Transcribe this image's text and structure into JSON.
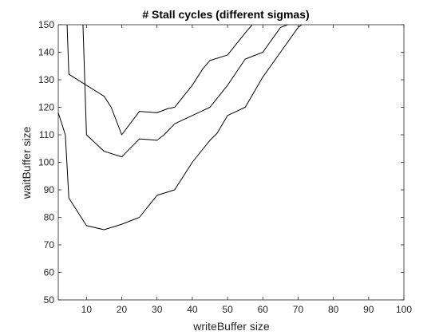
{
  "chart_data": {
    "type": "line",
    "title": "# Stall cycles (different sigmas)",
    "xlabel": "writeBuffer size",
    "ylabel": "waitBuffer size",
    "xlim": [
      2,
      100
    ],
    "ylim": [
      50,
      150
    ],
    "xticks": [
      10,
      20,
      30,
      40,
      50,
      60,
      70,
      80,
      90,
      100
    ],
    "yticks": [
      50,
      60,
      70,
      80,
      90,
      100,
      110,
      120,
      130,
      140,
      150
    ],
    "grid": false,
    "legend": "none",
    "line_color": "#000000",
    "series": [
      {
        "x": [
          4.5,
          5,
          10,
          15,
          17,
          20,
          25,
          30,
          33,
          35,
          40,
          43,
          45,
          50,
          55,
          57
        ],
        "y": [
          150,
          132,
          128,
          124,
          120,
          110,
          118.5,
          118,
          119.5,
          120,
          128,
          134,
          137,
          139,
          147,
          150
        ]
      },
      {
        "x": [
          9,
          10,
          15,
          20,
          25,
          30,
          32,
          35,
          40,
          45,
          50,
          55,
          60,
          65,
          67
        ],
        "y": [
          150,
          110,
          104,
          102,
          108.5,
          108,
          110,
          114,
          117,
          120,
          128,
          137.5,
          140,
          149,
          150
        ]
      },
      {
        "x": [
          2,
          4,
          5,
          10,
          15,
          20,
          25,
          30,
          35,
          40,
          45,
          47,
          50,
          55,
          60,
          65,
          70,
          71
        ],
        "y": [
          118,
          110,
          87,
          77,
          75.5,
          77.5,
          80,
          88,
          90,
          100,
          108,
          110.5,
          117,
          120,
          131,
          140,
          149,
          150
        ]
      }
    ]
  }
}
